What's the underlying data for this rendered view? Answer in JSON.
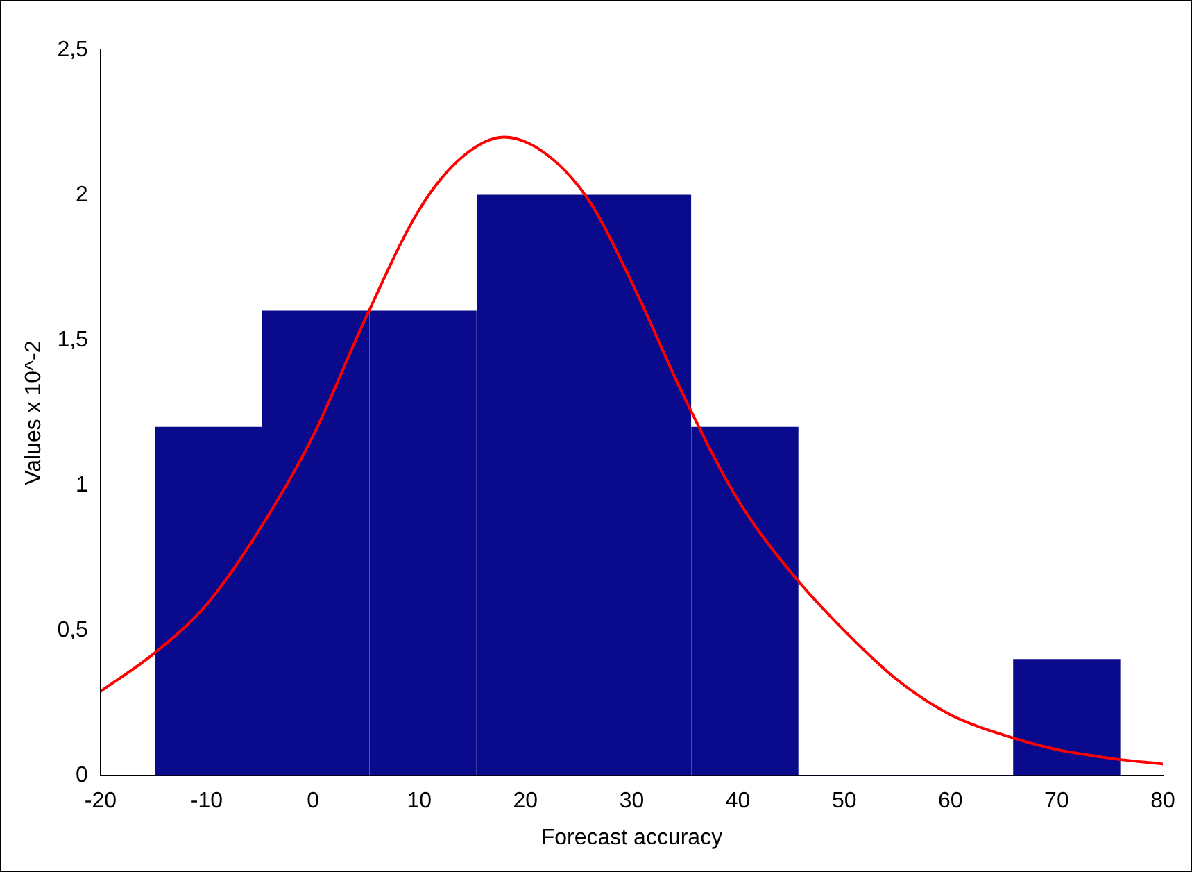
{
  "chart_data": {
    "type": "histogram",
    "xlabel": "Forecast accuracy",
    "ylabel": "Values x 10^-2",
    "bins": [
      -14.9,
      -4.8,
      5.3,
      15.4,
      25.5,
      35.6,
      45.7,
      55.8,
      65.9,
      76.0
    ],
    "values": [
      1.2,
      1.6,
      1.6,
      2.0,
      2.0,
      1.2,
      0,
      0,
      0.4
    ],
    "color": "#0a0a8c",
    "series": [
      {
        "type": "line",
        "color": "#ff0000",
        "x": [
          -20,
          -15,
          -10,
          -5,
          0,
          5,
          10,
          14,
          18,
          22,
          26,
          30,
          35,
          40,
          45,
          50,
          55,
          60,
          65,
          70,
          75,
          80
        ],
        "values": [
          0.29,
          0.42,
          0.59,
          0.85,
          1.17,
          1.58,
          1.95,
          2.13,
          2.2,
          2.14,
          1.98,
          1.7,
          1.3,
          0.95,
          0.7,
          0.5,
          0.33,
          0.21,
          0.14,
          0.09,
          0.06,
          0.04
        ]
      }
    ],
    "xlim": [
      -20,
      80
    ],
    "xticks": [
      -20,
      -10,
      0,
      10,
      20,
      30,
      40,
      50,
      60,
      70,
      80
    ],
    "ylim": [
      0,
      2.5
    ],
    "yticks": [
      0,
      {
        "value": 0.5,
        "label": "0,5"
      },
      1,
      {
        "value": 1.5,
        "label": "1,5"
      },
      2,
      {
        "value": 2.5,
        "label": "2,5"
      }
    ],
    "grid": false,
    "legend": false
  }
}
